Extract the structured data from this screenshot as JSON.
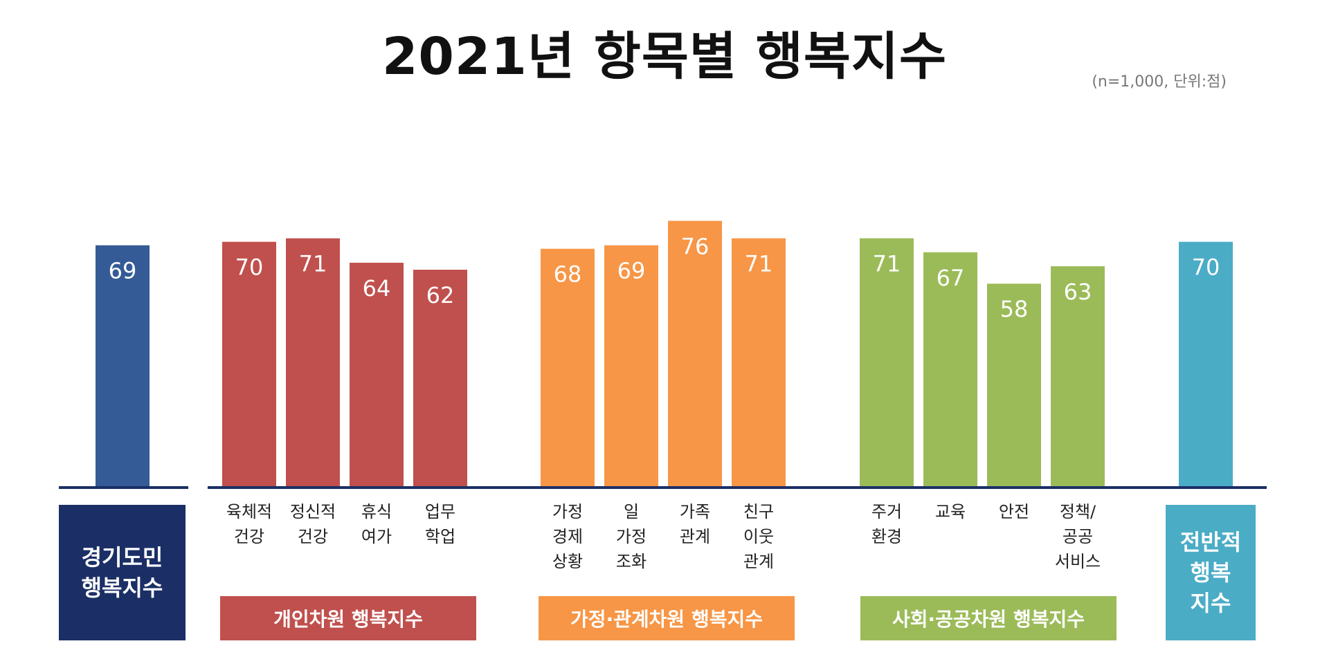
{
  "title": "2021년 항목별 행복지수",
  "unit_note": "(n=1,000, 단위:점)",
  "colors": {
    "navy": "#345B96",
    "navy_dark": "#1B2F66",
    "red": "#C0504D",
    "orange": "#F79646",
    "green": "#9BBB59",
    "teal": "#4BACC6",
    "axis": "#1B2F66"
  },
  "overall_box": {
    "label": "경기도민\n행복지수"
  },
  "summary_box": {
    "label": "전반적\n행복\n지수"
  },
  "group_labels": {
    "personal": "개인차원 행복지수",
    "family": "가정·관계차원 행복지수",
    "social": "사회·공공차원 행복지수"
  },
  "chart_data": {
    "type": "bar",
    "title": "2021년 항목별 행복지수",
    "note": "(n=1,000, 단위:점)",
    "ylim": [
      0,
      100
    ],
    "grid": false,
    "categories": [
      "",
      "육체적\n건강",
      "정신적\n건강",
      "휴식\n여가",
      "업무\n학업",
      "가정\n경제\n상황",
      "일\n가정\n조화",
      "가족\n관계",
      "친구\n이웃\n관계",
      "주거\n환경",
      "교육",
      "안전",
      "정책/\n공공\n서비스",
      ""
    ],
    "values": [
      69,
      70,
      71,
      64,
      62,
      68,
      69,
      76,
      71,
      71,
      67,
      58,
      63,
      70
    ],
    "bar_colors": [
      "#345B96",
      "#C0504D",
      "#C0504D",
      "#C0504D",
      "#C0504D",
      "#F79646",
      "#F79646",
      "#F79646",
      "#F79646",
      "#9BBB59",
      "#9BBB59",
      "#9BBB59",
      "#9BBB59",
      "#4BACC6"
    ],
    "groups": [
      {
        "label": "경기도민 행복지수",
        "bars": [
          0
        ]
      },
      {
        "label": "개인차원 행복지수",
        "bars": [
          1,
          2,
          3,
          4
        ]
      },
      {
        "label": "가정·관계차원 행복지수",
        "bars": [
          5,
          6,
          7,
          8
        ]
      },
      {
        "label": "사회·공공차원 행복지수",
        "bars": [
          9,
          10,
          11,
          12
        ]
      },
      {
        "label": "전반적 행복지수",
        "bars": [
          13
        ]
      }
    ]
  }
}
